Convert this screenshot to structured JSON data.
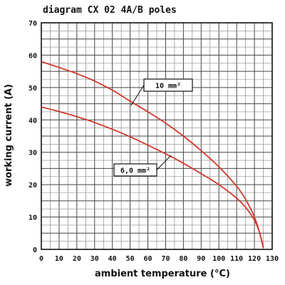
{
  "chart_data": {
    "type": "line",
    "title": "diagram CX 02 4A/B poles",
    "xlabel": "ambient temperature (°C)",
    "ylabel": "working current (A)",
    "xlim": [
      0,
      130
    ],
    "ylim": [
      0,
      70
    ],
    "xticks": [
      "0",
      "10",
      "20",
      "30",
      "40",
      "50",
      "60",
      "70",
      "80",
      "90",
      "100",
      "110",
      "120",
      "130"
    ],
    "yticks": [
      "0",
      "10",
      "20",
      "30",
      "40",
      "50",
      "60",
      "70"
    ],
    "grid": true,
    "series": [
      {
        "name": "10 mm²",
        "color": "#d2382b",
        "x": [
          0,
          10,
          20,
          30,
          40,
          50,
          60,
          70,
          80,
          90,
          100,
          110,
          115,
          120,
          123,
          125
        ],
        "y": [
          58,
          56.2,
          54.3,
          52.0,
          49.2,
          45.8,
          42.5,
          39.0,
          35.0,
          30.5,
          25.5,
          19.5,
          15.5,
          10.0,
          5.0,
          0.5
        ]
      },
      {
        "name": "6,0 mm²",
        "color": "#d2382b",
        "x": [
          0,
          10,
          20,
          30,
          40,
          50,
          60,
          70,
          80,
          90,
          100,
          110,
          115,
          120,
          123,
          125
        ],
        "y": [
          44,
          42.6,
          41.0,
          39.2,
          37.1,
          34.8,
          32.2,
          29.5,
          26.6,
          23.4,
          20.0,
          15.8,
          13.0,
          9.0,
          5.0,
          0.5
        ]
      }
    ],
    "annotations": [
      {
        "text": "10 mm²",
        "series": 0
      },
      {
        "text": "6,0 mm²",
        "series": 1
      }
    ]
  }
}
